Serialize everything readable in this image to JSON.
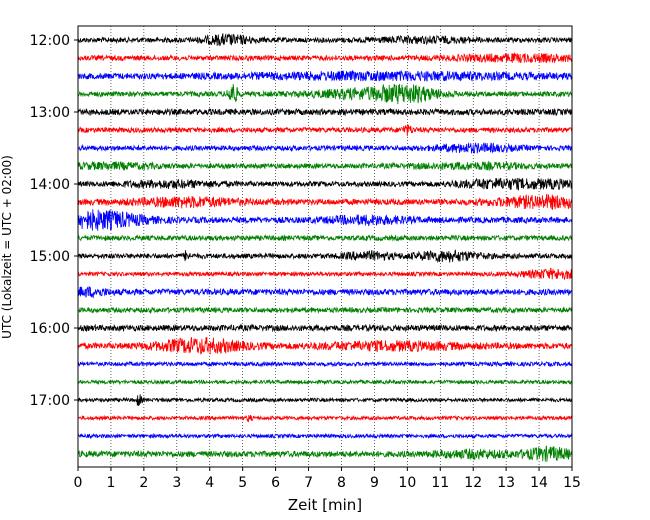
{
  "chart_data": {
    "type": "line",
    "xlabel": "Zeit  [min]",
    "ylabel": "UTC (Lokalzeit = UTC + 02:00)",
    "xlim": [
      0,
      15
    ],
    "x_ticks": [
      "0",
      "1",
      "2",
      "3",
      "4",
      "5",
      "6",
      "7",
      "8",
      "9",
      "10",
      "11",
      "12",
      "13",
      "14",
      "15"
    ],
    "y_ticks": [
      {
        "label": "12:00",
        "trace": 0
      },
      {
        "label": "13:00",
        "trace": 4
      },
      {
        "label": "14:00",
        "trace": 8
      },
      {
        "label": "15:00",
        "trace": 12
      },
      {
        "label": "16:00",
        "trace": 16
      },
      {
        "label": "17:00",
        "trace": 20
      }
    ],
    "grid": "vertical dotted",
    "trace_colors": [
      "#000000",
      "#ff0000",
      "#0000ff",
      "#008000"
    ],
    "traces": [
      {
        "start": "12:00",
        "base": 2.5,
        "bursts": [
          [
            4.5,
            0.5,
            4
          ],
          [
            10.5,
            1.0,
            2
          ]
        ]
      },
      {
        "start": "12:15",
        "base": 2.5,
        "bursts": [
          [
            13.5,
            1.5,
            2.5
          ]
        ]
      },
      {
        "start": "12:30",
        "base": 3.0,
        "bursts": [
          [
            9.5,
            3.0,
            2.5
          ]
        ]
      },
      {
        "start": "12:45",
        "base": 2.5,
        "bursts": [
          [
            4.7,
            0.1,
            10
          ],
          [
            8.8,
            1.2,
            4
          ],
          [
            10.0,
            0.6,
            6
          ]
        ]
      },
      {
        "start": "13:00",
        "base": 3.0,
        "bursts": []
      },
      {
        "start": "13:15",
        "base": 2.5,
        "bursts": [
          [
            10.0,
            0.1,
            4
          ]
        ]
      },
      {
        "start": "13:30",
        "base": 2.5,
        "bursts": [
          [
            12.0,
            0.8,
            3
          ]
        ]
      },
      {
        "start": "13:45",
        "base": 2.5,
        "bursts": [
          [
            1.0,
            1.0,
            2
          ],
          [
            12.0,
            1.2,
            2
          ]
        ]
      },
      {
        "start": "14:00",
        "base": 2.5,
        "bursts": [
          [
            2.8,
            1.0,
            2.5
          ],
          [
            12.5,
            0.8,
            3
          ],
          [
            14.3,
            1.0,
            3
          ]
        ]
      },
      {
        "start": "14:15",
        "base": 3.0,
        "bursts": [
          [
            3.3,
            1.0,
            3.5
          ],
          [
            14.2,
            1.0,
            5
          ]
        ]
      },
      {
        "start": "14:30",
        "base": 3.0,
        "bursts": [
          [
            0.6,
            0.9,
            8
          ],
          [
            8.8,
            0.8,
            3
          ]
        ]
      },
      {
        "start": "14:45",
        "base": 2.5,
        "bursts": []
      },
      {
        "start": "15:00",
        "base": 2.5,
        "bursts": [
          [
            3.3,
            0.05,
            5
          ],
          [
            8.8,
            0.5,
            3
          ],
          [
            11.2,
            0.7,
            4
          ]
        ]
      },
      {
        "start": "15:15",
        "base": 2.0,
        "bursts": [
          [
            14.5,
            0.7,
            4
          ]
        ]
      },
      {
        "start": "15:30",
        "base": 3.0,
        "bursts": [
          [
            0.3,
            0.4,
            3
          ]
        ]
      },
      {
        "start": "15:45",
        "base": 2.5,
        "bursts": []
      },
      {
        "start": "16:00",
        "base": 3.0,
        "bursts": []
      },
      {
        "start": "16:15",
        "base": 3.0,
        "bursts": [
          [
            3.7,
            0.9,
            6
          ],
          [
            9.5,
            1.5,
            3
          ]
        ]
      },
      {
        "start": "16:30",
        "base": 2.0,
        "bursts": []
      },
      {
        "start": "16:45",
        "base": 1.8,
        "bursts": []
      },
      {
        "start": "17:00",
        "base": 1.8,
        "bursts": [
          [
            1.85,
            0.05,
            6
          ]
        ]
      },
      {
        "start": "17:15",
        "base": 1.8,
        "bursts": [
          [
            5.2,
            0.05,
            3
          ]
        ]
      },
      {
        "start": "17:30",
        "base": 1.8,
        "bursts": []
      },
      {
        "start": "17:45",
        "base": 3.0,
        "bursts": [
          [
            12.0,
            0.8,
            2.5
          ],
          [
            14.3,
            0.5,
            5
          ]
        ]
      }
    ]
  }
}
